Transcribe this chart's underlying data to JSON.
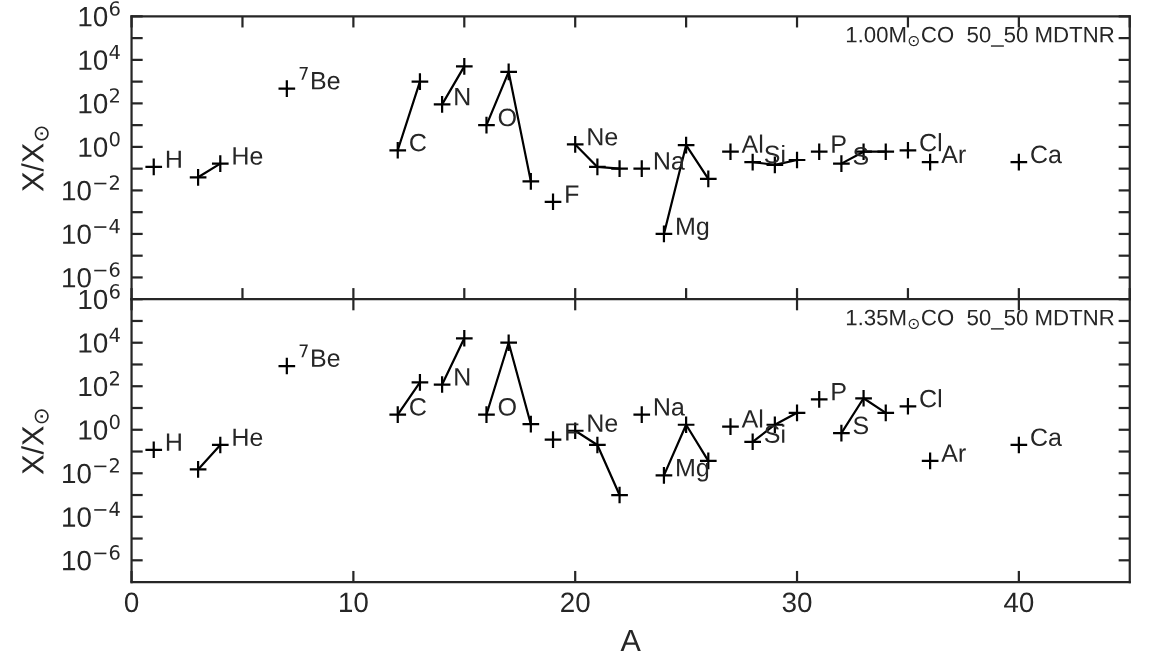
{
  "chart_data": [
    {
      "type": "line",
      "title": "1.00M$_{⊙}$CO  50_50 MDTNR",
      "ylabel": "X/X$_{⊙}$",
      "log": "y",
      "marker": "cross",
      "line_style": "solid",
      "grid": false,
      "legend": false,
      "tick_labels": "y",
      "xlim": [
        0,
        45
      ],
      "ylim": [
        1e-07,
        1000000.0
      ],
      "yticks": [
        {
          "value": 1e-06,
          "label": "10$^{−6}$"
        },
        {
          "value": 1e-05,
          "label": null
        },
        {
          "value": 0.0001,
          "label": "10$^{−4}$"
        },
        {
          "value": 0.001,
          "label": null
        },
        {
          "value": 0.01,
          "label": "10$^{−2}$"
        },
        {
          "value": 0.1,
          "label": null
        },
        {
          "value": 1,
          "label": "10$^{0}$"
        },
        {
          "value": 10,
          "label": null
        },
        {
          "value": 100,
          "label": "10$^{2}$"
        },
        {
          "value": 1000,
          "label": null
        },
        {
          "value": 10000,
          "label": "10$^{4}$"
        },
        {
          "value": 100000,
          "label": null
        },
        {
          "value": 1000000,
          "label": "10$^{6}$"
        }
      ],
      "series": [
        {
          "name": "H",
          "color": "#000000",
          "x": [
            1
          ],
          "values": [
            0.12
          ]
        },
        {
          "name": "He",
          "color": "#000000",
          "x": [
            4,
            3
          ],
          "values": [
            0.17,
            0.04
          ]
        },
        {
          "name": "$^{7}$Be",
          "color": "#000000",
          "x": [
            7
          ],
          "values": [
            480
          ]
        },
        {
          "name": "C",
          "color": "#000000",
          "x": [
            12,
            13
          ],
          "values": [
            0.7,
            1000
          ]
        },
        {
          "name": "N",
          "color": "#000000",
          "x": [
            14,
            15
          ],
          "values": [
            90,
            5000
          ]
        },
        {
          "name": "O",
          "color": "#000000",
          "x": [
            16,
            17,
            18
          ],
          "values": [
            10,
            2800,
            0.026
          ]
        },
        {
          "name": "F",
          "color": "#000000",
          "x": [
            19
          ],
          "values": [
            0.003
          ]
        },
        {
          "name": "Ne",
          "color": "#000000",
          "x": [
            20,
            21,
            22
          ],
          "values": [
            1.3,
            0.12,
            0.1
          ]
        },
        {
          "name": "Na",
          "color": "#000000",
          "x": [
            23
          ],
          "values": [
            0.1
          ]
        },
        {
          "name": "Mg",
          "color": "#000000",
          "x": [
            24,
            25,
            26
          ],
          "values": [
            0.0001,
            1.2,
            0.034
          ]
        },
        {
          "name": "Al",
          "color": "#000000",
          "x": [
            27
          ],
          "values": [
            0.6
          ]
        },
        {
          "name": "Si",
          "color": "#000000",
          "x": [
            28,
            29,
            30
          ],
          "values": [
            0.2,
            0.15,
            0.25
          ]
        },
        {
          "name": "P",
          "color": "#000000",
          "x": [
            31
          ],
          "values": [
            0.6
          ]
        },
        {
          "name": "S",
          "color": "#000000",
          "x": [
            32,
            33,
            34
          ],
          "values": [
            0.17,
            0.6,
            0.6
          ]
        },
        {
          "name": "Cl",
          "color": "#000000",
          "x": [
            35
          ],
          "values": [
            0.7
          ]
        },
        {
          "name": "Ar",
          "color": "#000000",
          "x": [
            36
          ],
          "values": [
            0.2
          ]
        },
        {
          "name": "Ca",
          "color": "#000000",
          "x": [
            40
          ],
          "values": [
            0.2
          ]
        }
      ]
    },
    {
      "type": "line",
      "title": "1.35M$_{⊙}$CO  50_50 MDTNR",
      "ylabel": "X/X$_{⊙}$",
      "xlabel": "A",
      "log": "y",
      "marker": "cross",
      "line_style": "solid",
      "grid": false,
      "legend": false,
      "xlim": [
        0,
        45
      ],
      "xticks": [
        0,
        10,
        20,
        30,
        40
      ],
      "ylim": [
        1e-07,
        1000000.0
      ],
      "yticks": [
        {
          "value": 1e-06,
          "label": "10$^{−6}$"
        },
        {
          "value": 1e-05,
          "label": null
        },
        {
          "value": 0.0001,
          "label": "10$^{−4}$"
        },
        {
          "value": 0.001,
          "label": null
        },
        {
          "value": 0.01,
          "label": "10$^{−2}$"
        },
        {
          "value": 0.1,
          "label": null
        },
        {
          "value": 1,
          "label": "10$^{0}$"
        },
        {
          "value": 10,
          "label": null
        },
        {
          "value": 100,
          "label": "10$^{2}$"
        },
        {
          "value": 1000,
          "label": null
        },
        {
          "value": 10000,
          "label": "10$^{4}$"
        },
        {
          "value": 100000,
          "label": null
        },
        {
          "value": 1000000,
          "label": "10$^{6}$"
        }
      ],
      "series": [
        {
          "name": "H",
          "color": "#000000",
          "x": [
            1
          ],
          "values": [
            0.12
          ]
        },
        {
          "name": "He",
          "color": "#000000",
          "x": [
            4,
            3
          ],
          "values": [
            0.2,
            0.015
          ]
        },
        {
          "name": "$^{7}$Be",
          "color": "#000000",
          "x": [
            7
          ],
          "values": [
            850
          ]
        },
        {
          "name": "C",
          "color": "#000000",
          "x": [
            12,
            13
          ],
          "values": [
            5,
            150
          ]
        },
        {
          "name": "N",
          "color": "#000000",
          "x": [
            14,
            15
          ],
          "values": [
            120,
            16000
          ]
        },
        {
          "name": "O",
          "color": "#000000",
          "x": [
            16,
            17,
            18
          ],
          "values": [
            5,
            10000,
            1.8
          ]
        },
        {
          "name": "F",
          "color": "#000000",
          "x": [
            19
          ],
          "values": [
            0.35
          ]
        },
        {
          "name": "Ne",
          "color": "#000000",
          "x": [
            20,
            21,
            22
          ],
          "values": [
            0.9,
            0.2,
            0.001
          ]
        },
        {
          "name": "Na",
          "color": "#000000",
          "x": [
            23
          ],
          "values": [
            5
          ]
        },
        {
          "name": "Mg",
          "color": "#000000",
          "x": [
            24,
            25,
            26
          ],
          "values": [
            0.008,
            1.7,
            0.037
          ]
        },
        {
          "name": "Al",
          "color": "#000000",
          "x": [
            27
          ],
          "values": [
            1.4
          ]
        },
        {
          "name": "Si",
          "color": "#000000",
          "x": [
            28,
            29,
            30
          ],
          "values": [
            0.28,
            1.7,
            6
          ]
        },
        {
          "name": "P",
          "color": "#000000",
          "x": [
            31
          ],
          "values": [
            25
          ]
        },
        {
          "name": "S",
          "color": "#000000",
          "x": [
            32,
            33,
            34
          ],
          "values": [
            0.7,
            28,
            6
          ]
        },
        {
          "name": "Cl",
          "color": "#000000",
          "x": [
            35
          ],
          "values": [
            12
          ]
        },
        {
          "name": "Ar",
          "color": "#000000",
          "x": [
            36
          ],
          "values": [
            0.037
          ]
        },
        {
          "name": "Ca",
          "color": "#000000",
          "x": [
            40
          ],
          "values": [
            0.2
          ]
        }
      ]
    }
  ]
}
